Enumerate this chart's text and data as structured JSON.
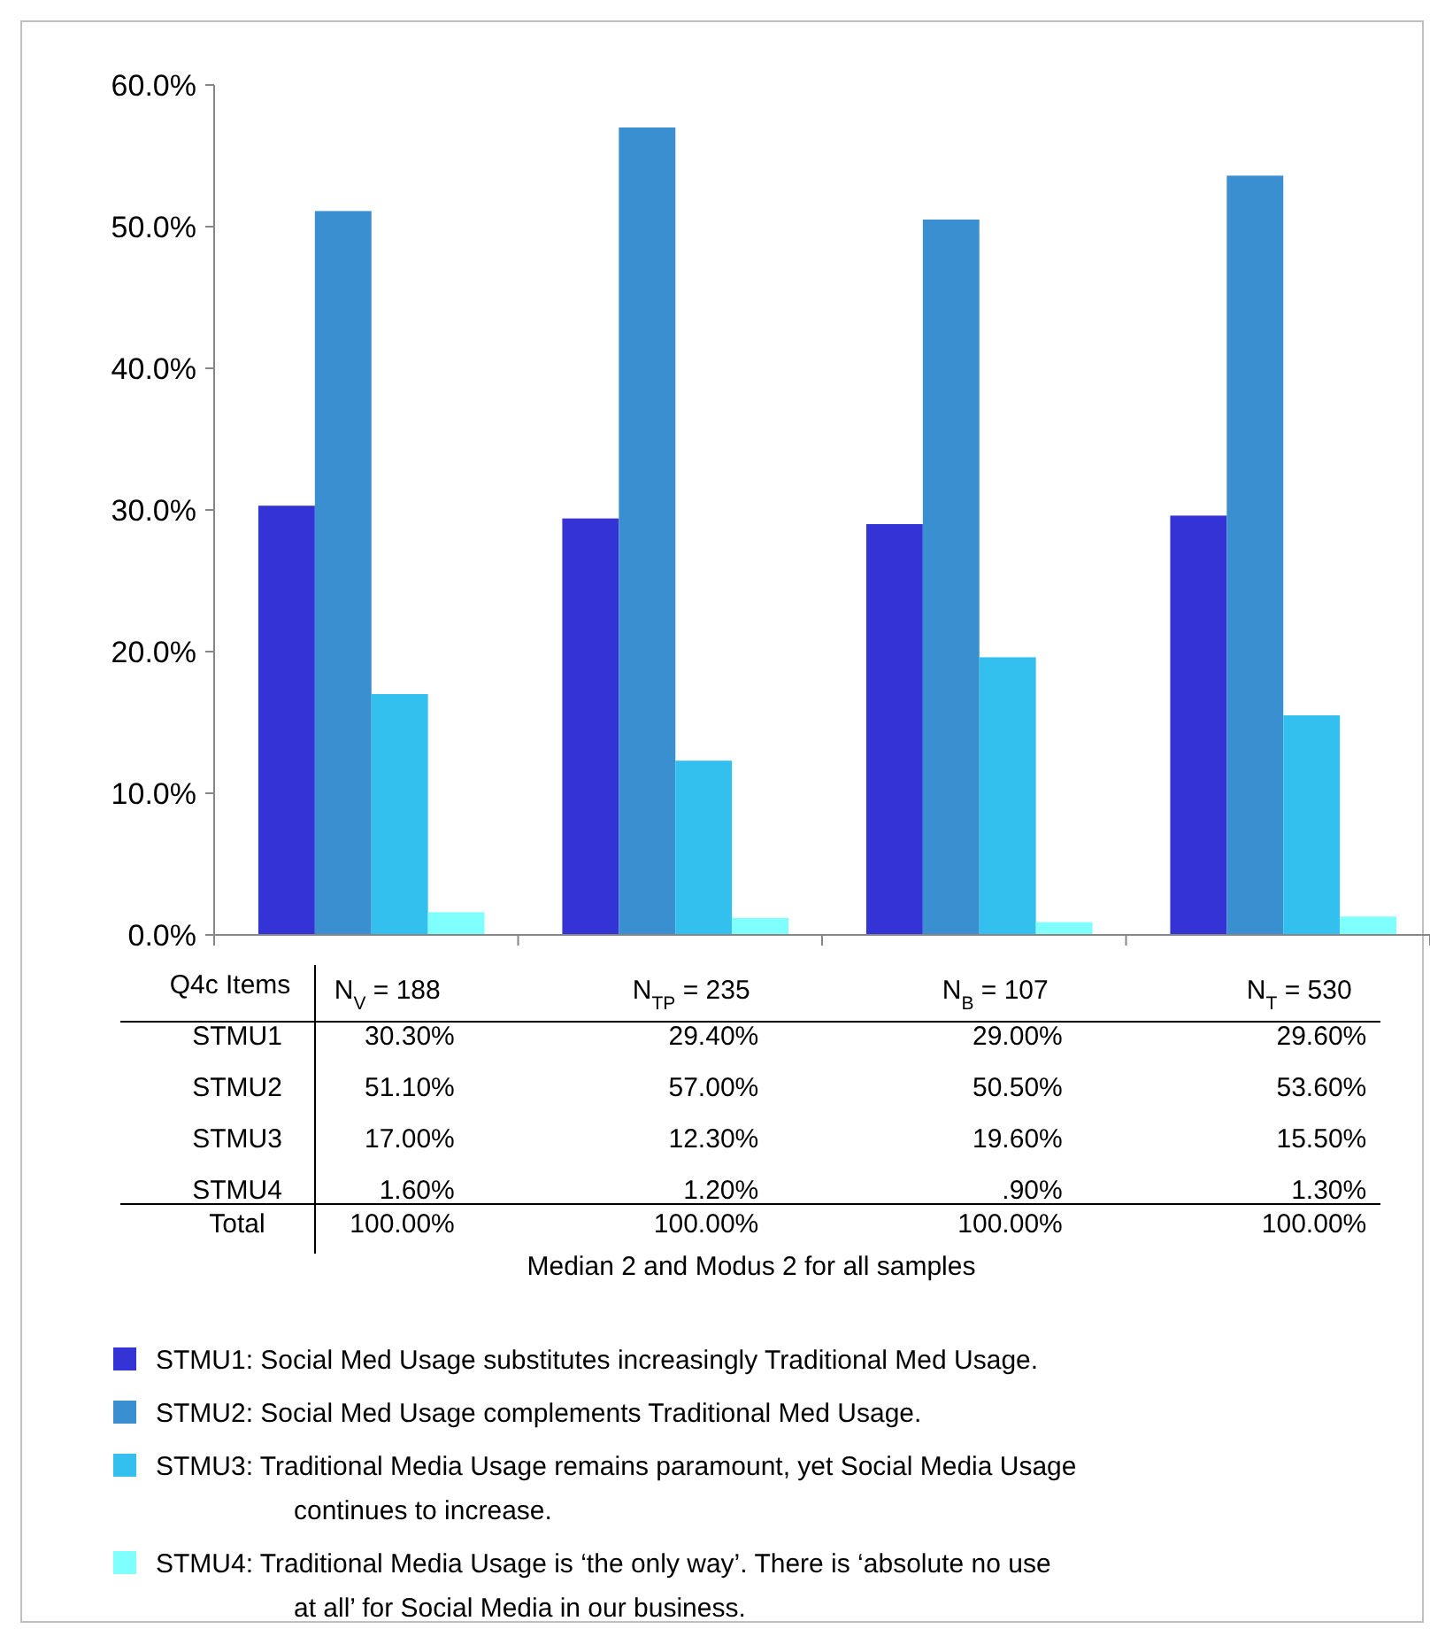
{
  "chart_data": {
    "type": "bar",
    "categories": [
      "N$_{V}$ = 188",
      "N$_{TP}$ = 235",
      "N$_{B}$ = 107",
      "N$_{T}$ = 530"
    ],
    "series": [
      {
        "name": "STMU1: Social Med Usage substitutes increasingly Traditional Med Usage.",
        "color": "#3333d6",
        "values": [
          30.3,
          29.4,
          29.0,
          29.6
        ],
        "value_labels": [
          "30.30%",
          "29.40%",
          "29.00%",
          "29.60%"
        ]
      },
      {
        "name": "STMU2: Social Med Usage complements Traditional Med Usage.",
        "color": "#3a8fd0",
        "values": [
          51.1,
          57.0,
          50.5,
          53.6
        ],
        "value_labels": [
          "51.10%",
          "57.00%",
          "50.50%",
          "53.60%"
        ]
      },
      {
        "name": "STMU3: Traditional Media Usage remains paramount, yet Social Media Usage continues to increase.",
        "color": "#33c0ee",
        "values": [
          17.0,
          12.3,
          19.6,
          15.5
        ],
        "value_labels": [
          "17.00%",
          "12.30%",
          "19.60%",
          "15.50%"
        ]
      },
      {
        "name": "STMU4: Traditional Media Usage is ‘the only way’. There is ‘absolute no use at all’ for Social Media in our business.",
        "color": "#80ffff",
        "values": [
          1.6,
          1.2,
          0.9,
          1.3
        ],
        "value_labels": [
          "1.60%",
          "1.20%",
          ".90%",
          "1.30%"
        ]
      }
    ],
    "annotations": [
      "Q4c Items",
      "STMU1",
      "STMU2",
      "STMU3",
      "STMU4",
      "Total",
      "100.00%",
      "100.00%",
      "100.00%",
      "100.00%",
      "Median 2 and Modus 2 for all samples"
    ],
    "ylim": [
      0,
      60
    ],
    "yticks": [
      {
        "value": 0,
        "label": "0.0%"
      },
      {
        "value": 10,
        "label": "10.0%"
      },
      {
        "value": 20,
        "label": "20.0%"
      },
      {
        "value": 30,
        "label": "30.0%"
      },
      {
        "value": 40,
        "label": "40.0%"
      },
      {
        "value": 50,
        "label": "50.0%"
      },
      {
        "value": 60,
        "label": "60.0%"
      }
    ],
    "grid": false,
    "legend": "bottom"
  }
}
